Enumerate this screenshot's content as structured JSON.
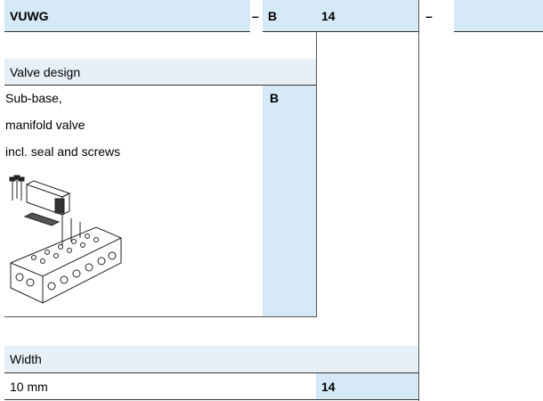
{
  "header": {
    "cells": [
      "VUWG",
      "–",
      "B",
      "14",
      "–"
    ]
  },
  "sections": [
    {
      "title": "Valve design",
      "description": [
        "Sub-base,",
        "manifold valve",
        "incl. seal and screws"
      ],
      "code": "B"
    },
    {
      "title": "Width",
      "description": [
        "10 mm"
      ],
      "code": "14"
    }
  ]
}
